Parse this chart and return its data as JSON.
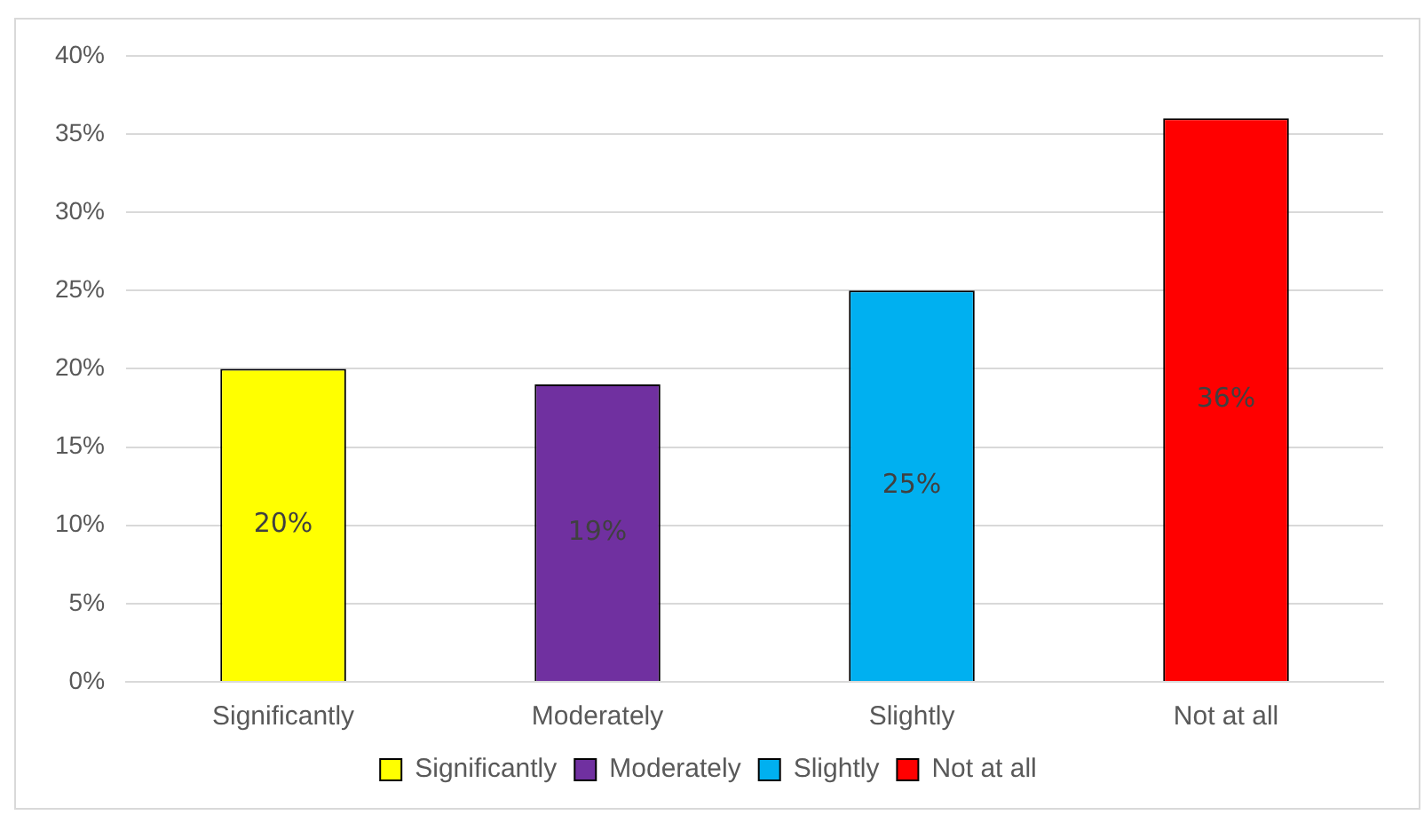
{
  "chart_data": {
    "type": "bar",
    "categories": [
      "Significantly",
      "Moderately",
      "Slightly",
      "Not at all"
    ],
    "series": [
      {
        "name": "Significantly",
        "color": "#ffff00",
        "values": [
          20,
          null,
          null,
          null
        ],
        "value_labels": [
          "20%",
          null,
          null,
          null
        ]
      },
      {
        "name": "Moderately",
        "color": "#7030a0",
        "values": [
          null,
          19,
          null,
          null
        ],
        "value_labels": [
          null,
          "19%",
          null,
          null
        ]
      },
      {
        "name": "Slightly",
        "color": "#00b0f0",
        "values": [
          null,
          null,
          25,
          null
        ],
        "value_labels": [
          null,
          null,
          "25%",
          null
        ]
      },
      {
        "name": "Not at all",
        "color": "#ff0000",
        "values": [
          null,
          null,
          null,
          36
        ],
        "value_labels": [
          null,
          null,
          null,
          "36%"
        ]
      }
    ],
    "ylim": [
      0,
      40
    ],
    "yticks": [
      {
        "value": 0,
        "label": "0%"
      },
      {
        "value": 5,
        "label": "5%"
      },
      {
        "value": 10,
        "label": "10%"
      },
      {
        "value": 15,
        "label": "15%"
      },
      {
        "value": 20,
        "label": "20%"
      },
      {
        "value": 25,
        "label": "25%"
      },
      {
        "value": 30,
        "label": "30%"
      },
      {
        "value": 35,
        "label": "35%"
      },
      {
        "value": 40,
        "label": "40%"
      }
    ],
    "grid": "y",
    "legend": "bottom"
  }
}
